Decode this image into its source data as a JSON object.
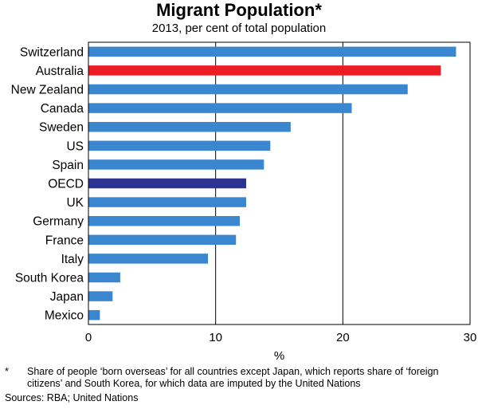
{
  "chart_data": {
    "type": "bar",
    "orientation": "horizontal",
    "title": "Migrant Population*",
    "subtitle": "2013, per cent of total population",
    "categories": [
      "Switzerland",
      "Australia",
      "New Zealand",
      "Canada",
      "Sweden",
      "US",
      "Spain",
      "OECD",
      "UK",
      "Germany",
      "France",
      "Italy",
      "South Korea",
      "Japan",
      "Mexico"
    ],
    "values": [
      28.9,
      27.7,
      25.1,
      20.7,
      15.9,
      14.3,
      13.8,
      12.4,
      12.4,
      11.9,
      11.6,
      9.4,
      2.5,
      1.9,
      0.9
    ],
    "colors": [
      "#3a87d0",
      "#ec1c24",
      "#3a87d0",
      "#3a87d0",
      "#3a87d0",
      "#3a87d0",
      "#3a87d0",
      "#2b3490",
      "#3a87d0",
      "#3a87d0",
      "#3a87d0",
      "#3a87d0",
      "#3a87d0",
      "#3a87d0",
      "#3a87d0"
    ],
    "xlabel": "%",
    "xlim": [
      0,
      30
    ],
    "xticks": [
      0,
      10,
      20,
      30
    ],
    "footnote_marker": "*",
    "footnote": "Share of people ‘born overseas’ for all countries except Japan, which reports share of ‘foreign citizens’ and South Korea, for which data are imputed by the United Nations",
    "sources": "Sources: RBA; United Nations"
  }
}
